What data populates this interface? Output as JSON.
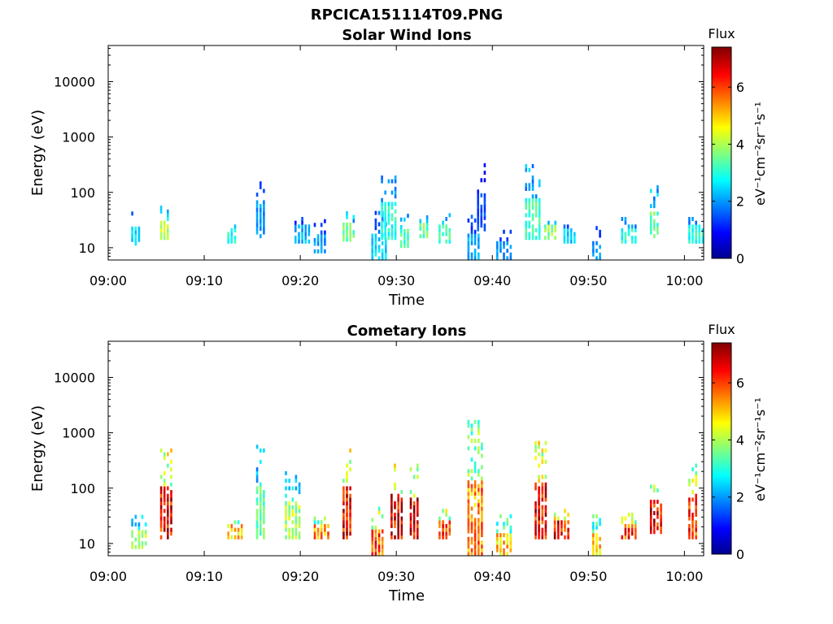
{
  "figure_title": "RPCICA151114T09.PNG",
  "chart_data": [
    {
      "type": "heatmap",
      "title": "Solar Wind Ions",
      "xlabel": "Time",
      "ylabel": "Energy (eV)",
      "y_scale": "log",
      "xlim": [
        "09:00",
        "10:02"
      ],
      "ylim": [
        6,
        45000
      ],
      "x_ticks": [
        "09:00",
        "09:10",
        "09:20",
        "09:30",
        "09:40",
        "09:50",
        "10:00"
      ],
      "y_ticks": [
        "10",
        "100",
        "1000",
        "10000"
      ],
      "colorbar": {
        "title": "Flux",
        "unit": "eV⁻¹cm⁻²sr⁻¹s⁻¹",
        "range": [
          0,
          7.4
        ],
        "ticks": [
          "0",
          "2",
          "4",
          "6"
        ],
        "colormap": "jet"
      },
      "bursts": [
        {
          "time": "09:03",
          "e_lo": 11,
          "e_hi": 40,
          "flux": 2.5
        },
        {
          "time": "09:06",
          "e_lo": 14,
          "e_hi": 55,
          "flux": 4.0
        },
        {
          "time": "09:13",
          "e_lo": 12,
          "e_hi": 33,
          "flux": 3.0
        },
        {
          "time": "09:16",
          "e_lo": 15,
          "e_hi": 200,
          "flux": 2.0
        },
        {
          "time": "09:20",
          "e_lo": 12,
          "e_hi": 40,
          "flux": 2.2
        },
        {
          "time": "09:22",
          "e_lo": 8,
          "e_hi": 30,
          "flux": 2.0
        },
        {
          "time": "09:25",
          "e_lo": 13,
          "e_hi": 45,
          "flux": 3.5
        },
        {
          "time": "09:28",
          "e_lo": 6,
          "e_hi": 40,
          "flux": 2.5
        },
        {
          "time": "09:29",
          "e_lo": 14,
          "e_hi": 200,
          "flux": 3.0
        },
        {
          "time": "09:31",
          "e_lo": 10,
          "e_hi": 40,
          "flux": 3.2
        },
        {
          "time": "09:33",
          "e_lo": 15,
          "e_hi": 40,
          "flux": 3.6
        },
        {
          "time": "09:35",
          "e_lo": 12,
          "e_hi": 40,
          "flux": 3.2
        },
        {
          "time": "09:38",
          "e_lo": 6,
          "e_hi": 35,
          "flux": 2.2
        },
        {
          "time": "09:39",
          "e_lo": 20,
          "e_hi": 300,
          "flux": 1.5
        },
        {
          "time": "09:41",
          "e_lo": 6,
          "e_hi": 22,
          "flux": 2.0
        },
        {
          "time": "09:44",
          "e_lo": 14,
          "e_hi": 300,
          "flux": 3.2
        },
        {
          "time": "09:46",
          "e_lo": 14,
          "e_hi": 40,
          "flux": 3.8
        },
        {
          "time": "09:48",
          "e_lo": 12,
          "e_hi": 30,
          "flux": 2.4
        },
        {
          "time": "09:51",
          "e_lo": 6,
          "e_hi": 22,
          "flux": 2.0
        },
        {
          "time": "09:54",
          "e_lo": 12,
          "e_hi": 35,
          "flux": 3.0
        },
        {
          "time": "09:57",
          "e_lo": 15,
          "e_hi": 120,
          "flux": 3.4
        },
        {
          "time": "10:01",
          "e_lo": 12,
          "e_hi": 40,
          "flux": 3.0
        }
      ]
    },
    {
      "type": "heatmap",
      "title": "Cometary Ions",
      "xlabel": "Time",
      "ylabel": "Energy (eV)",
      "y_scale": "log",
      "xlim": [
        "09:00",
        "10:02"
      ],
      "ylim": [
        6,
        45000
      ],
      "x_ticks": [
        "09:00",
        "09:10",
        "09:20",
        "09:30",
        "09:40",
        "09:50",
        "10:00"
      ],
      "y_ticks": [
        "10",
        "100",
        "1000",
        "10000"
      ],
      "colorbar": {
        "title": "Flux",
        "unit": "eV⁻¹cm⁻²sr⁻¹s⁻¹",
        "range": [
          0,
          7.4
        ],
        "ticks": [
          "0",
          "2",
          "4",
          "6"
        ],
        "colormap": "jet"
      },
      "bursts": [
        {
          "time": "09:03",
          "e_lo": 8,
          "e_hi": 30,
          "flux": 4.0
        },
        {
          "time": "09:06",
          "e_lo": 12,
          "e_hi": 500,
          "flux": 6.5
        },
        {
          "time": "09:13",
          "e_lo": 12,
          "e_hi": 30,
          "flux": 5.0
        },
        {
          "time": "09:16",
          "e_lo": 12,
          "e_hi": 700,
          "flux": 3.5
        },
        {
          "time": "09:19",
          "e_lo": 12,
          "e_hi": 200,
          "flux": 4.0
        },
        {
          "time": "09:22",
          "e_lo": 12,
          "e_hi": 30,
          "flux": 5.5
        },
        {
          "time": "09:25",
          "e_lo": 12,
          "e_hi": 500,
          "flux": 6.5
        },
        {
          "time": "09:28",
          "e_lo": 6,
          "e_hi": 40,
          "flux": 6.0
        },
        {
          "time": "09:30",
          "e_lo": 12,
          "e_hi": 300,
          "flux": 6.5
        },
        {
          "time": "09:32",
          "e_lo": 12,
          "e_hi": 250,
          "flux": 6.8
        },
        {
          "time": "09:35",
          "e_lo": 12,
          "e_hi": 40,
          "flux": 6.2
        },
        {
          "time": "09:38",
          "e_lo": 6,
          "e_hi": 1500,
          "flux": 5.5
        },
        {
          "time": "09:41",
          "e_lo": 6,
          "e_hi": 30,
          "flux": 5.0
        },
        {
          "time": "09:45",
          "e_lo": 12,
          "e_hi": 700,
          "flux": 6.5
        },
        {
          "time": "09:47",
          "e_lo": 12,
          "e_hi": 40,
          "flux": 6.5
        },
        {
          "time": "09:51",
          "e_lo": 6,
          "e_hi": 30,
          "flux": 5.0
        },
        {
          "time": "09:54",
          "e_lo": 12,
          "e_hi": 35,
          "flux": 6.0
        },
        {
          "time": "09:57",
          "e_lo": 15,
          "e_hi": 150,
          "flux": 6.5
        },
        {
          "time": "10:01",
          "e_lo": 12,
          "e_hi": 300,
          "flux": 6.0
        }
      ]
    }
  ]
}
